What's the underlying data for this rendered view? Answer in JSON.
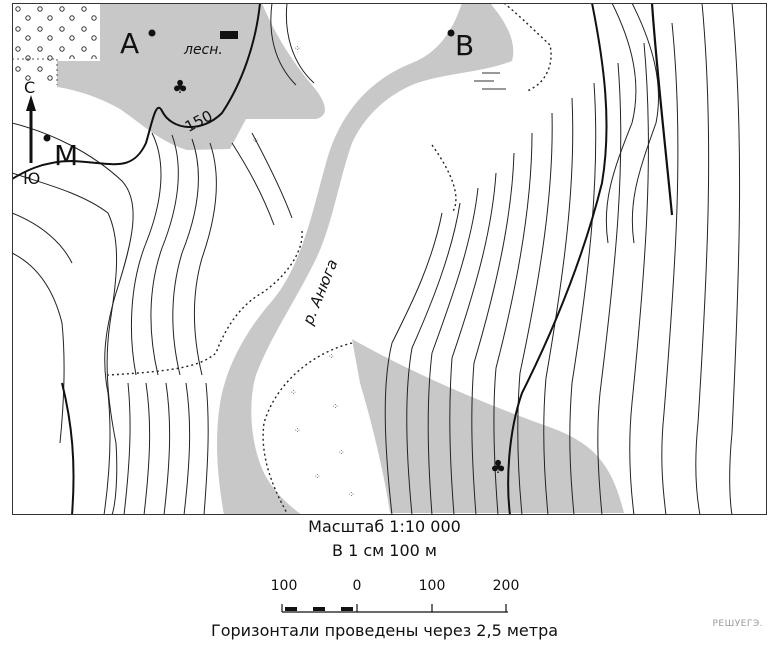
{
  "map": {
    "points": {
      "a": "A",
      "b": "B",
      "m": "M"
    },
    "north_label": "С",
    "south_label": "Ю",
    "forestry_label": "лесн.",
    "river_label": "р. Анюга",
    "contour_value": "150"
  },
  "legend": {
    "scale_title": "Масштаб 1:10 000",
    "scale_sub": "В 1 см 100 м",
    "scale_ticks": [
      "100",
      "0",
      "100",
      "200"
    ],
    "contour_note": "Горизонтали проведены через 2,5 метра"
  },
  "watermark": "РЕШУЕГЭ."
}
